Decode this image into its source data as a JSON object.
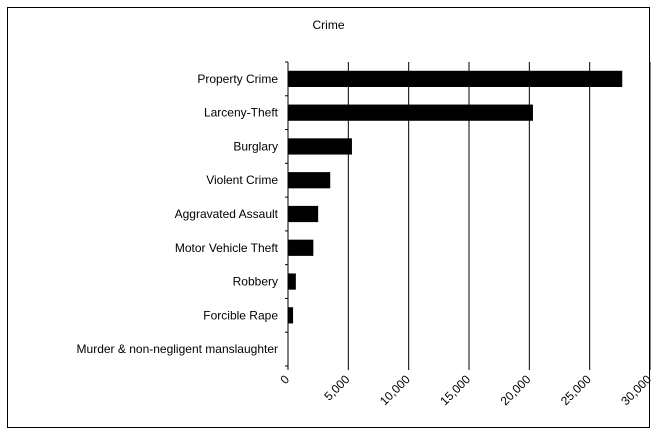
{
  "chart_data": {
    "type": "bar",
    "orientation": "horizontal",
    "title": "Crime",
    "xlabel": "",
    "ylabel": "",
    "categories": [
      "Property Crime",
      "Larceny-Theft",
      "Burglary",
      "Violent Crime",
      "Aggravated Assault",
      "Motor Vehicle Theft",
      "Robbery",
      "Forcible Rape",
      "Murder & non-negligent manslaughter"
    ],
    "values": [
      27700,
      20300,
      5300,
      3500,
      2500,
      2100,
      650,
      420,
      30
    ],
    "xlim": [
      0,
      30000
    ],
    "x_ticks": [
      0,
      5000,
      10000,
      15000,
      20000,
      25000,
      30000
    ],
    "x_tick_labels": [
      "0",
      "5,000",
      "10,000",
      "15,000",
      "20,000",
      "25,000",
      "30,000"
    ],
    "grid": "vertical",
    "legend": "none",
    "bar_color": "#000000",
    "gridline_color": "#000000"
  }
}
